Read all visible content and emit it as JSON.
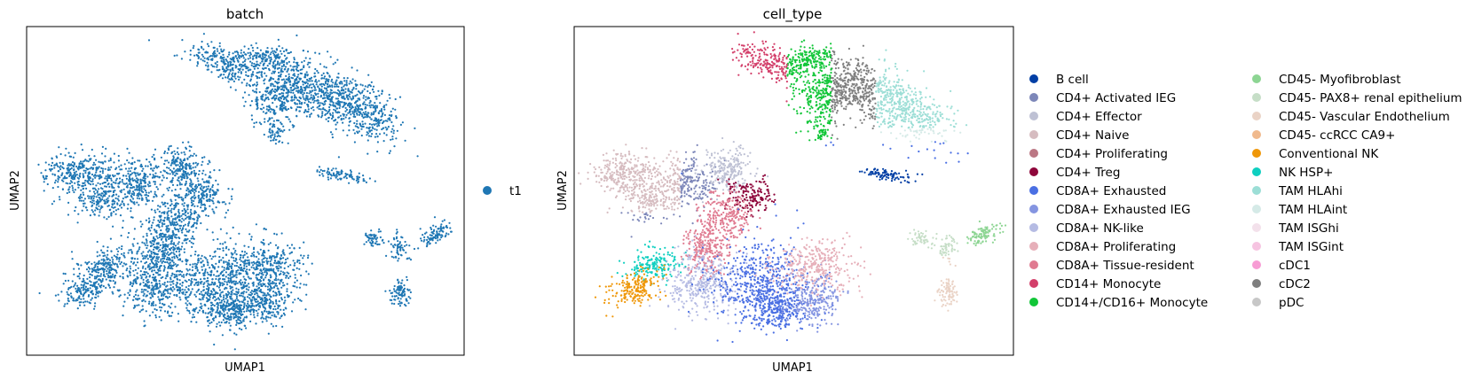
{
  "chart_data": [
    {
      "type": "scatter",
      "title": "batch",
      "xlabel": "UMAP1",
      "ylabel": "UMAP2",
      "grid": false,
      "ticks": false,
      "legend_position": "right",
      "series": [
        {
          "name": "t1",
          "color": "#1f77b4"
        }
      ]
    },
    {
      "type": "scatter",
      "title": "cell_type",
      "xlabel": "UMAP1",
      "ylabel": "UMAP2",
      "grid": false,
      "ticks": false,
      "legend_position": "right",
      "series": [
        {
          "name": "B cell",
          "color": "#023fa5"
        },
        {
          "name": "CD4+ Activated IEG",
          "color": "#7d87b9"
        },
        {
          "name": "CD4+ Effector",
          "color": "#bec1d4"
        },
        {
          "name": "CD4+ Naive",
          "color": "#d6bcc0"
        },
        {
          "name": "CD4+ Proliferating",
          "color": "#bb7784"
        },
        {
          "name": "CD4+ Treg",
          "color": "#8e063b"
        },
        {
          "name": "CD8A+ Exhausted",
          "color": "#4a6fe3"
        },
        {
          "name": "CD8A+ Exhausted IEG",
          "color": "#8595e1"
        },
        {
          "name": "CD8A+ NK-like",
          "color": "#b5bbe3"
        },
        {
          "name": "CD8A+ Proliferating",
          "color": "#e6afb9"
        },
        {
          "name": "CD8A+ Tissue-resident",
          "color": "#e07b91"
        },
        {
          "name": "CD14+ Monocyte",
          "color": "#d33f6a"
        },
        {
          "name": "CD14+/CD16+ Monocyte",
          "color": "#11c638"
        },
        {
          "name": "CD45- Myofibroblast",
          "color": "#8dd593"
        },
        {
          "name": "CD45- PAX8+ renal epithelium",
          "color": "#c6dec7"
        },
        {
          "name": "CD45- Vascular Endothelium",
          "color": "#ead3c6"
        },
        {
          "name": "CD45- ccRCC CA9+",
          "color": "#f0b98d"
        },
        {
          "name": "Conventional NK",
          "color": "#ef9708"
        },
        {
          "name": "NK HSP+",
          "color": "#0fcfc0"
        },
        {
          "name": "TAM HLAhi",
          "color": "#9cded6"
        },
        {
          "name": "TAM HLAint",
          "color": "#d5eae7"
        },
        {
          "name": "TAM ISGhi",
          "color": "#f3e1eb"
        },
        {
          "name": "TAM ISGint",
          "color": "#f6c4e1"
        },
        {
          "name": "cDC1",
          "color": "#f79cd4"
        },
        {
          "name": "cDC2",
          "color": "#7f7f7f"
        },
        {
          "name": "pDC",
          "color": "#c7c7c7"
        }
      ]
    }
  ]
}
